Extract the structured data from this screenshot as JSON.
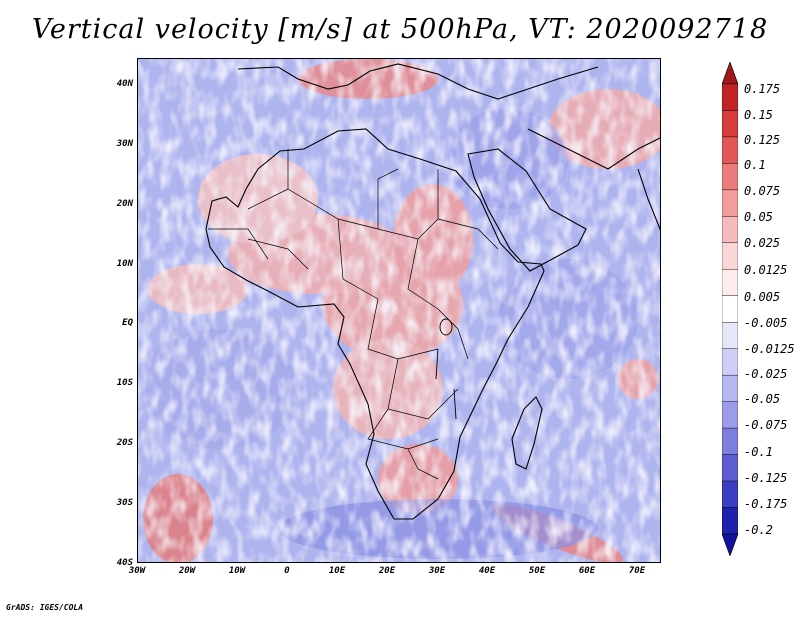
{
  "title": "Vertical velocity [m/s] at 500hPa, VT: 2020092718",
  "credit": "GrADS: IGES/COLA",
  "map": {
    "region": "Africa",
    "lon_range": [
      -30,
      75
    ],
    "lat_range": [
      -40,
      45
    ],
    "lat_ticks": [
      "40N",
      "30N",
      "20N",
      "10N",
      "EQ",
      "10S",
      "20S",
      "30S",
      "40S"
    ],
    "lon_ticks": [
      "30W",
      "20W",
      "10W",
      "0",
      "10E",
      "20E",
      "30E",
      "40E",
      "50E",
      "60E",
      "70E"
    ]
  },
  "colorbar": {
    "labels": [
      "0.175",
      "0.15",
      "0.125",
      "0.1",
      "0.075",
      "0.05",
      "0.025",
      "0.0125",
      "0.005",
      "-0.005",
      "-0.0125",
      "-0.025",
      "-0.05",
      "-0.075",
      "-0.1",
      "-0.125",
      "-0.175",
      "-0.2"
    ],
    "colors": [
      "#a01818",
      "#c02424",
      "#d63c3c",
      "#e25858",
      "#ec7c7c",
      "#f29c9c",
      "#f6baba",
      "#fad6d6",
      "#fdecec",
      "#ffffff",
      "#e6e6fb",
      "#cfcff6",
      "#b7b7f0",
      "#9c9ce8",
      "#7e7ede",
      "#5e5ed2",
      "#3c3cc4",
      "#2020b0",
      "#1212a0"
    ]
  }
}
